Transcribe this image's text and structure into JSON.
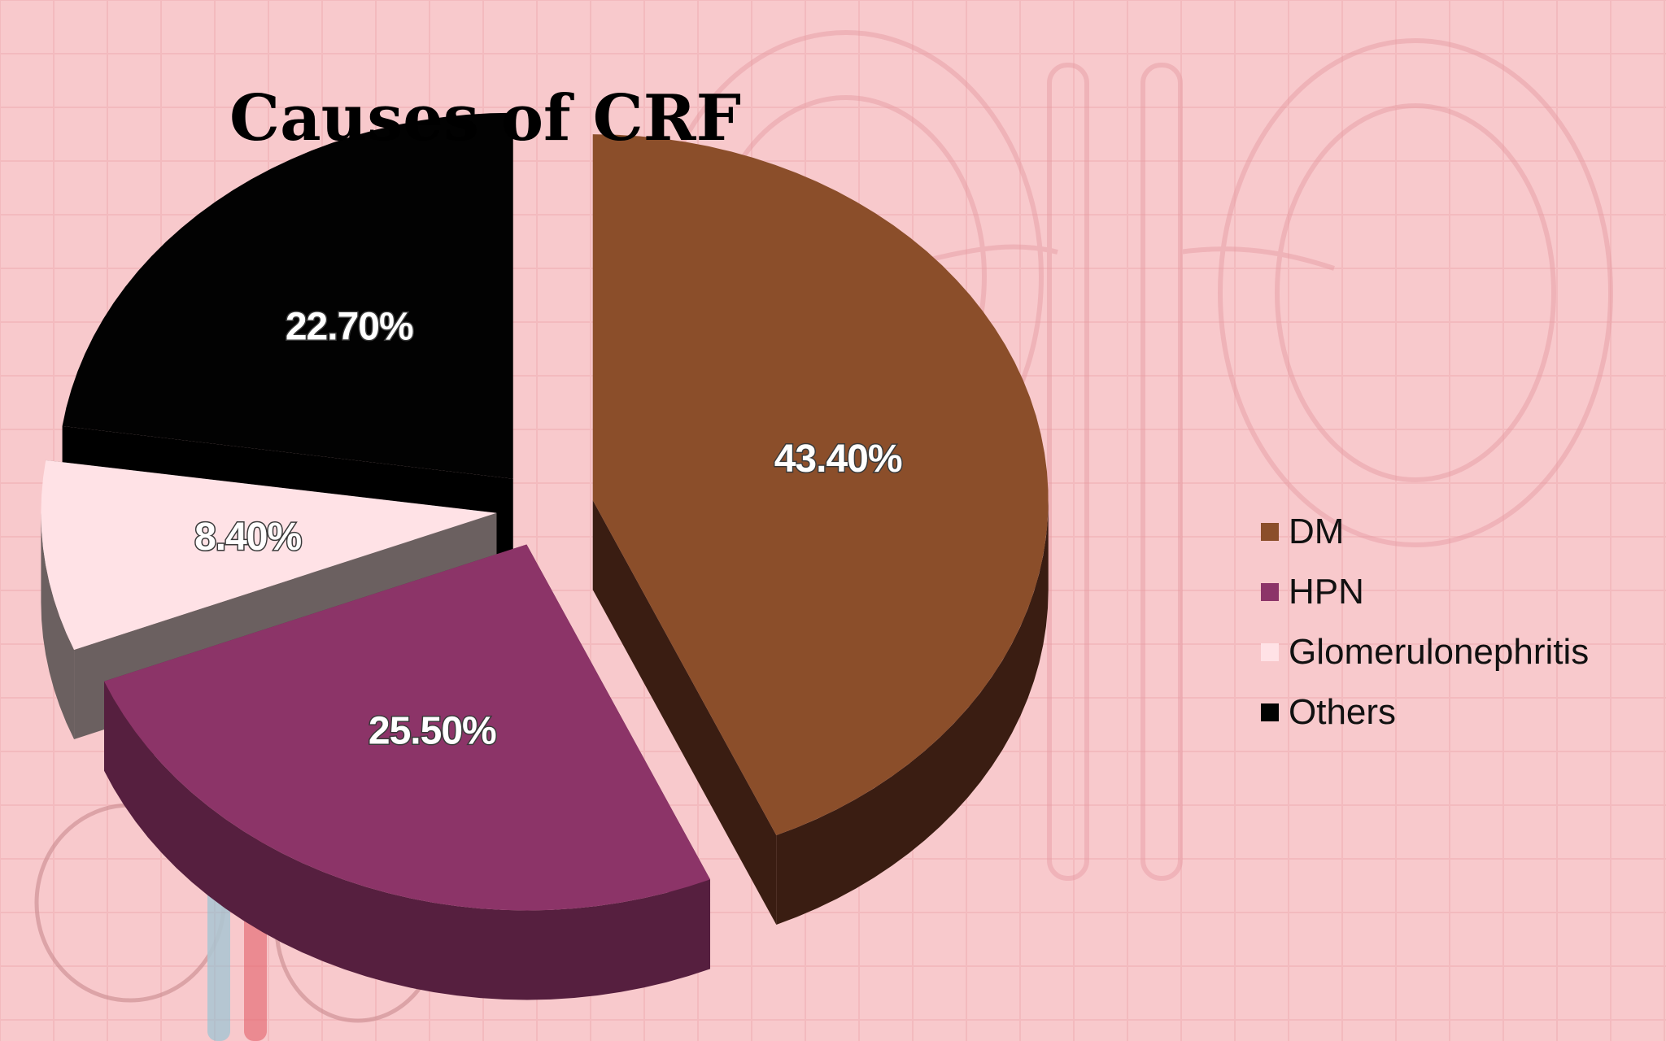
{
  "colors": {
    "background": "#f8c9cc",
    "grid": "#f0aeb4",
    "watermark": "#e69aa1"
  },
  "chart_data": {
    "type": "pie",
    "title": "Causes of CRF",
    "legend_position": "right",
    "slices": [
      {
        "name": "DM",
        "value": 43.4,
        "label": "43.40%",
        "color": "#8b4e2a",
        "side_color": "#3a1d12"
      },
      {
        "name": "HPN",
        "value": 25.5,
        "label": "25.50%",
        "color": "#8c3468",
        "side_color": "#561f3f"
      },
      {
        "name": "Glomerulonephritis",
        "value": 8.4,
        "label": "8.40%",
        "color": "#ffe2e6",
        "side_color": "#6b6060"
      },
      {
        "name": "Others",
        "value": 22.7,
        "label": "22.70%",
        "color": "#020202",
        "side_color": "#000000"
      }
    ]
  }
}
